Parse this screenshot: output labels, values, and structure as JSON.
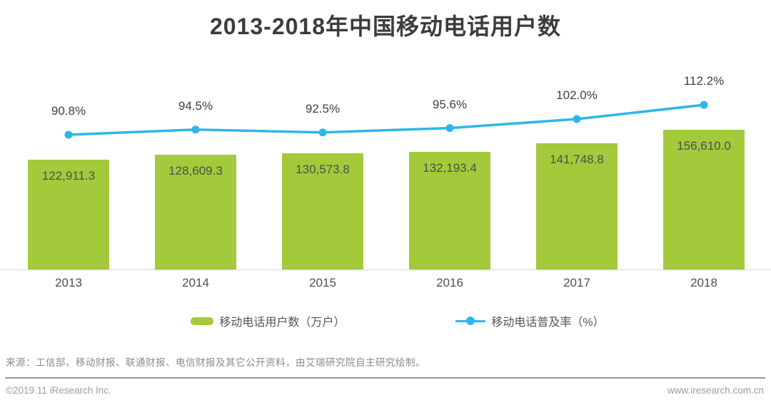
{
  "title": "2013-2018年中国移动电话用户数",
  "chart_data": {
    "type": "bar",
    "title": "2013-2018年中国移动电话用户数",
    "categories": [
      "2013",
      "2014",
      "2015",
      "2016",
      "2017",
      "2018"
    ],
    "series": [
      {
        "name": "移动电话用户数（万户）",
        "type": "bar",
        "values": [
          122911.3,
          128609.3,
          130573.8,
          132193.4,
          141748.8,
          156610.0
        ],
        "value_labels": [
          "122,911.3",
          "128,609.3",
          "130,573.8",
          "132,193.4",
          "141,748.8",
          "156,610.0"
        ]
      },
      {
        "name": "移动电话普及率（%）",
        "type": "line",
        "values": [
          90.8,
          94.5,
          92.5,
          95.6,
          102.0,
          112.2
        ],
        "value_labels": [
          "90.8%",
          "94.5%",
          "92.5%",
          "95.6%",
          "102.0%",
          "112.2%"
        ]
      }
    ],
    "xlabel": "",
    "ylabel": "",
    "ylim_bar": [
      0,
      240000
    ],
    "ylim_line": [
      0,
      150
    ],
    "grid": false,
    "legend_position": "bottom",
    "bar_color": "#a3ca3b",
    "line_color": "#2eb6e8"
  },
  "legend": [
    {
      "label": "移动电话用户数（万户）",
      "swatch_color": "#a3ca3b"
    },
    {
      "label": "移动电话普及率（%）",
      "marker_color": "#2eb6e8"
    }
  ],
  "source": "来源：工信部、移动财报、联通财报、电信财报及其它公开资料，由艾瑞研究院自主研究绘制。",
  "footer": {
    "left": "©2019.11 iResearch Inc.",
    "right": "www.iresearch.com.cn"
  }
}
